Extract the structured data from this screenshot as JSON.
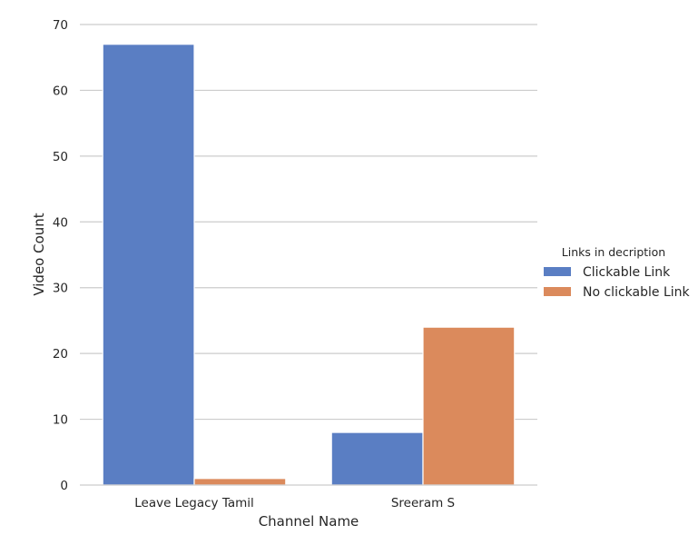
{
  "chart_data": {
    "type": "bar",
    "categories": [
      "Leave Legacy Tamil",
      "Sreeram S"
    ],
    "series": [
      {
        "name": "Clickable Link",
        "values": [
          67,
          8
        ],
        "color": "#5a7ec3"
      },
      {
        "name": "No clickable Link",
        "values": [
          1,
          24
        ],
        "color": "#db8a5c"
      }
    ],
    "xlabel": "Channel Name",
    "ylabel": "Video Count",
    "ylim": [
      0,
      70
    ],
    "yticks": [
      0,
      10,
      20,
      30,
      40,
      50,
      60,
      70
    ],
    "legend_title": "Links in decription",
    "legend_position": "right",
    "grid": "horizontal"
  }
}
